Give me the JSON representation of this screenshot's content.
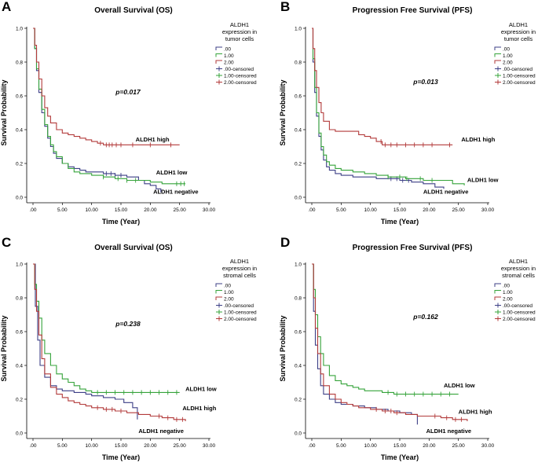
{
  "colors": {
    "negative": "#3c3f86",
    "low": "#35a33a",
    "high": "#b23a3a",
    "axis": "#000000",
    "background": "#ffffff"
  },
  "chart_data": [
    {
      "panel": "A",
      "type": "line",
      "title": "Overall Survival (OS)",
      "xlabel": "Time (Year)",
      "ylabel": "Survival Probability",
      "xlim": [
        0,
        30
      ],
      "ylim": [
        0,
        1
      ],
      "xticks": [
        ".00",
        "5.00",
        "10.00",
        "15.00",
        "20.00",
        "25.00",
        "30.00"
      ],
      "yticks": [
        "0.0",
        "0.2",
        "0.4",
        "0.6",
        "0.8",
        "1.0"
      ],
      "legend": {
        "title": [
          "ALDH1",
          "expression in",
          "tumor cells"
        ],
        "entries": [
          ".00",
          "1.00",
          "2.00",
          ".00-censored",
          "1.00-censored",
          "2.00-censored"
        ]
      },
      "p_value": "p=0.017",
      "series": [
        {
          "name": ".00",
          "color_key": "negative",
          "annotation": "ALDH1 negative",
          "x": [
            0,
            0.3,
            0.6,
            1.0,
            1.5,
            2.0,
            2.5,
            3.0,
            3.5,
            4.0,
            5.0,
            6.0,
            7.0,
            8.0,
            9.0,
            10.0,
            12.0,
            14.0,
            16.0,
            18.0,
            19.0,
            20.0,
            21.0,
            21.8
          ],
          "y": [
            1.0,
            0.88,
            0.75,
            0.62,
            0.5,
            0.42,
            0.35,
            0.3,
            0.26,
            0.23,
            0.2,
            0.18,
            0.17,
            0.16,
            0.15,
            0.15,
            0.14,
            0.13,
            0.12,
            0.1,
            0.08,
            0.07,
            0.05,
            0.03
          ],
          "censored": [
            12.5,
            13.3,
            14.0,
            15.0
          ]
        },
        {
          "name": "1.00",
          "color_key": "low",
          "annotation": "ALDH1 low",
          "x": [
            0,
            0.3,
            0.6,
            1.0,
            1.5,
            2.0,
            2.5,
            3.0,
            3.5,
            4.0,
            5.0,
            6.0,
            7.0,
            8.0,
            10.0,
            12.0,
            14.0,
            16.0,
            18.0,
            20.0,
            22.0,
            26.0
          ],
          "y": [
            1.0,
            0.88,
            0.76,
            0.64,
            0.52,
            0.43,
            0.36,
            0.31,
            0.27,
            0.24,
            0.2,
            0.17,
            0.15,
            0.14,
            0.13,
            0.12,
            0.11,
            0.1,
            0.1,
            0.09,
            0.08,
            0.08
          ],
          "censored": [
            12.0,
            14.5,
            16.0,
            17.5,
            24.5,
            25.2,
            25.8
          ]
        },
        {
          "name": "2.00",
          "color_key": "high",
          "annotation": "ALDH1 high",
          "x": [
            0,
            0.3,
            0.6,
            1.0,
            1.5,
            2.0,
            2.5,
            3.0,
            4.0,
            5.0,
            6.0,
            7.0,
            8.0,
            9.0,
            10.0,
            11.0,
            12.0,
            25.0
          ],
          "y": [
            1.0,
            0.9,
            0.8,
            0.7,
            0.6,
            0.53,
            0.48,
            0.44,
            0.4,
            0.38,
            0.37,
            0.36,
            0.35,
            0.34,
            0.33,
            0.32,
            0.31,
            0.31
          ],
          "censored": [
            11.5,
            12.5,
            13.0,
            13.5,
            14.2,
            15.0,
            17.0,
            20.0,
            23.5
          ]
        }
      ],
      "annotations": [
        {
          "text": "ALDH1 high",
          "x": 17.5,
          "y": 0.33
        },
        {
          "text": "ALDH1 low",
          "x": 21.0,
          "y": 0.135
        },
        {
          "text": "ALDH1 negative",
          "x": 20.5,
          "y": 0.02
        }
      ]
    },
    {
      "panel": "B",
      "type": "line",
      "title": "Progression Free Survival (PFS)",
      "xlabel": "Time (Year)",
      "ylabel": "Survival Probability",
      "xlim": [
        0,
        30
      ],
      "ylim": [
        0,
        1
      ],
      "xticks": [
        ".00",
        "5.00",
        "10.00",
        "15.00",
        "20.00",
        "25.00",
        "30.00"
      ],
      "yticks": [
        "0.0",
        "0.2",
        "0.4",
        "0.6",
        "0.8",
        "1.0"
      ],
      "legend": {
        "title": [
          "ALDH1",
          "expression in",
          "tumor cells"
        ],
        "entries": [
          ".00",
          "1.00",
          "2.00",
          ".00-censored",
          "1.00-censored",
          "2.00-censored"
        ]
      },
      "p_value": "p=0.013",
      "series": [
        {
          "name": ".00",
          "color_key": "negative",
          "annotation": "ALDH1 negative",
          "x": [
            0,
            0.2,
            0.5,
            0.8,
            1.2,
            1.6,
            2.0,
            2.5,
            3.0,
            4.0,
            5.0,
            7.0,
            9.0,
            11.0,
            13.0,
            15.0,
            17.0,
            19.0,
            21.0,
            22.5
          ],
          "y": [
            1.0,
            0.8,
            0.62,
            0.48,
            0.36,
            0.28,
            0.22,
            0.18,
            0.16,
            0.14,
            0.13,
            0.12,
            0.12,
            0.11,
            0.11,
            0.1,
            0.09,
            0.08,
            0.06,
            0.05
          ],
          "censored": [
            13.5,
            14.5,
            15.5,
            16.5
          ]
        },
        {
          "name": "1.00",
          "color_key": "low",
          "annotation": "ALDH1 low",
          "x": [
            0,
            0.2,
            0.5,
            0.8,
            1.2,
            1.6,
            2.0,
            2.5,
            3.0,
            4.0,
            5.0,
            7.0,
            9.0,
            11.0,
            13.0,
            16.0,
            19.0,
            22.0,
            24.0,
            26.0
          ],
          "y": [
            1.0,
            0.82,
            0.65,
            0.5,
            0.38,
            0.3,
            0.25,
            0.21,
            0.19,
            0.17,
            0.16,
            0.15,
            0.14,
            0.13,
            0.12,
            0.11,
            0.1,
            0.1,
            0.08,
            0.07
          ],
          "censored": [
            13.0,
            15.0,
            16.2,
            18.5,
            20.5
          ]
        },
        {
          "name": "2.00",
          "color_key": "high",
          "annotation": "ALDH1 high",
          "x": [
            0,
            0.2,
            0.5,
            0.8,
            1.2,
            1.6,
            2.0,
            3.0,
            4.0,
            5.0,
            6.0,
            7.0,
            8.0,
            9.0,
            10.0,
            11.0,
            12.0,
            24.0
          ],
          "y": [
            1.0,
            0.88,
            0.75,
            0.65,
            0.56,
            0.5,
            0.45,
            0.4,
            0.39,
            0.39,
            0.39,
            0.39,
            0.37,
            0.36,
            0.35,
            0.33,
            0.31,
            0.31
          ],
          "censored": [
            11.8,
            12.5,
            13.5,
            14.5,
            16.0,
            17.5,
            19.0,
            20.5,
            23.5
          ]
        }
      ],
      "annotations": [
        {
          "text": "ALDH1 high",
          "x": 25.5,
          "y": 0.33
        },
        {
          "text": "ALDH1 low",
          "x": 26.5,
          "y": 0.09
        },
        {
          "text": "ALDH1 negative",
          "x": 19.0,
          "y": 0.02
        }
      ]
    },
    {
      "panel": "C",
      "type": "line",
      "title": "Overall Survival (OS)",
      "xlabel": "Time (Year)",
      "ylabel": "Survival Probability",
      "xlim": [
        0,
        30
      ],
      "ylim": [
        0,
        1
      ],
      "xticks": [
        ".00",
        "5.00",
        "10.00",
        "15.00",
        "20.00",
        "25.00",
        "30.00"
      ],
      "yticks": [
        "0.0",
        "0.2",
        "0.4",
        "0.6",
        "0.8",
        "1.0"
      ],
      "legend": {
        "title": [
          "ALDH1",
          "expression in",
          "stromal cells"
        ],
        "entries": [
          ".00",
          "1.00",
          "2.00",
          ".00-censored",
          "1.00-censored",
          "2.00-censored"
        ]
      },
      "p_value": "p=0.238",
      "series": [
        {
          "name": ".00",
          "color_key": "negative",
          "annotation": "ALDH1 negative",
          "x": [
            0,
            0.4,
            0.8,
            1.2,
            2.0,
            3.0,
            4.0,
            5.0,
            7.0,
            9.0,
            10.0,
            12.0,
            14.0,
            15.5,
            17.0,
            17.8
          ],
          "y": [
            1.0,
            0.75,
            0.55,
            0.4,
            0.33,
            0.28,
            0.26,
            0.25,
            0.24,
            0.23,
            0.22,
            0.21,
            0.2,
            0.18,
            0.15,
            0.08
          ],
          "censored": []
        },
        {
          "name": "1.00",
          "color_key": "low",
          "annotation": "ALDH1 low",
          "x": [
            0,
            0.3,
            0.6,
            1.0,
            1.5,
            2.0,
            3.0,
            4.0,
            5.0,
            6.0,
            7.0,
            8.0,
            9.0,
            10.0,
            25.0
          ],
          "y": [
            1.0,
            0.88,
            0.78,
            0.68,
            0.55,
            0.47,
            0.4,
            0.35,
            0.32,
            0.3,
            0.28,
            0.26,
            0.25,
            0.24,
            0.24
          ],
          "censored": [
            11.0,
            12.5,
            14.0,
            15.5,
            17.0,
            18.5,
            20.0,
            21.5,
            23.0,
            24.5
          ]
        },
        {
          "name": "2.00",
          "color_key": "high",
          "annotation": "ALDH1 high",
          "x": [
            0,
            0.3,
            0.6,
            1.0,
            1.5,
            2.0,
            3.0,
            4.0,
            5.0,
            6.0,
            7.0,
            8.0,
            9.0,
            10.0,
            12.0,
            14.0,
            16.0,
            18.0,
            20.0,
            22.0,
            24.0,
            26.0
          ],
          "y": [
            1.0,
            0.85,
            0.72,
            0.58,
            0.44,
            0.35,
            0.27,
            0.23,
            0.21,
            0.19,
            0.18,
            0.17,
            0.16,
            0.15,
            0.14,
            0.13,
            0.12,
            0.11,
            0.1,
            0.09,
            0.08,
            0.07
          ],
          "censored": [
            11.0,
            12.5,
            13.5,
            15.0,
            21.5,
            23.0,
            24.5,
            25.5
          ]
        }
      ],
      "annotations": [
        {
          "text": "ALDH1 low",
          "x": 26.0,
          "y": 0.25
        },
        {
          "text": "ALDH1 high",
          "x": 25.5,
          "y": 0.135
        },
        {
          "text": "ALDH1 negative",
          "x": 18.0,
          "y": 0.0
        }
      ]
    },
    {
      "panel": "D",
      "type": "line",
      "title": "Progression Free Survival (PFS)",
      "xlabel": "Time (Year)",
      "ylabel": "Survival Probability",
      "xlim": [
        0,
        30
      ],
      "ylim": [
        0,
        1
      ],
      "xticks": [
        ".00",
        "5.00",
        "10.00",
        "15.00",
        "20.00",
        "25.00",
        "30.00"
      ],
      "yticks": [
        "0.0",
        "0.2",
        "0.4",
        "0.6",
        "0.8",
        "1.0"
      ],
      "legend": {
        "title": [
          "ALDH1",
          "expression in",
          "stromal cells"
        ],
        "entries": [
          ".00",
          "1.00",
          "2.00",
          ".00-censored",
          "1.00-censored",
          "2.00-censored"
        ]
      },
      "p_value": "p=0.162",
      "series": [
        {
          "name": ".00",
          "color_key": "negative",
          "annotation": "ALDH1 negative",
          "x": [
            0,
            0.3,
            0.6,
            1.0,
            1.5,
            2.0,
            3.0,
            4.0,
            5.0,
            7.0,
            9.0,
            11.0,
            13.0,
            15.0,
            17.0,
            18.0
          ],
          "y": [
            1.0,
            0.72,
            0.52,
            0.38,
            0.28,
            0.23,
            0.2,
            0.18,
            0.17,
            0.16,
            0.15,
            0.14,
            0.13,
            0.12,
            0.11,
            0.05
          ],
          "censored": []
        },
        {
          "name": "1.00",
          "color_key": "low",
          "annotation": "ALDH1 low",
          "x": [
            0,
            0.3,
            0.6,
            1.0,
            1.5,
            2.0,
            3.0,
            4.0,
            5.0,
            6.0,
            7.0,
            8.0,
            9.0,
            10.0,
            12.0,
            14.0,
            16.0,
            25.0
          ],
          "y": [
            1.0,
            0.85,
            0.7,
            0.57,
            0.47,
            0.4,
            0.34,
            0.31,
            0.29,
            0.28,
            0.27,
            0.26,
            0.25,
            0.25,
            0.24,
            0.23,
            0.23,
            0.23
          ],
          "censored": [
            13.0,
            14.5,
            16.0,
            17.5,
            19.0,
            20.5,
            22.0,
            23.5
          ]
        },
        {
          "name": "2.00",
          "color_key": "high",
          "annotation": "ALDH1 high",
          "x": [
            0,
            0.3,
            0.6,
            1.0,
            1.5,
            2.0,
            3.0,
            4.0,
            5.0,
            6.0,
            7.0,
            8.0,
            10.0,
            12.0,
            14.0,
            16.0,
            18.0,
            20.0,
            22.0,
            24.0,
            26.5
          ],
          "y": [
            1.0,
            0.8,
            0.62,
            0.47,
            0.35,
            0.28,
            0.23,
            0.2,
            0.18,
            0.17,
            0.16,
            0.15,
            0.14,
            0.13,
            0.12,
            0.11,
            0.1,
            0.1,
            0.09,
            0.08,
            0.07
          ],
          "censored": [
            11.0,
            12.5,
            13.5,
            14.5,
            21.0,
            23.0,
            24.5,
            25.5
          ]
        }
      ],
      "annotations": [
        {
          "text": "ALDH1 low",
          "x": 22.5,
          "y": 0.27
        },
        {
          "text": "ALDH1 high",
          "x": 25.0,
          "y": 0.115
        },
        {
          "text": "ALDH1 negative",
          "x": 19.5,
          "y": 0.0
        }
      ]
    }
  ]
}
